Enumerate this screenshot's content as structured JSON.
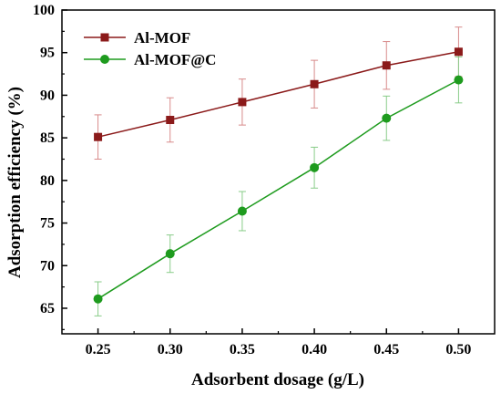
{
  "chart_data": {
    "type": "line",
    "xlabel": "Adsorbent dosage (g/L)",
    "ylabel": "Adsorption efficiency (%)",
    "x": [
      0.25,
      0.3,
      0.35,
      0.4,
      0.45,
      0.5
    ],
    "x_tick_labels": [
      "0.25",
      "0.30",
      "0.35",
      "0.40",
      "0.45",
      "0.50"
    ],
    "xlim": [
      0.225,
      0.525
    ],
    "ylim": [
      62,
      100
    ],
    "y_ticks": [
      65,
      70,
      75,
      80,
      85,
      90,
      95,
      100
    ],
    "y_tick_labels": [
      "65",
      "70",
      "75",
      "80",
      "85",
      "90",
      "95",
      "100"
    ],
    "grid": false,
    "legend_position": "top-left",
    "series": [
      {
        "name": "Al-MOF",
        "color": "#8B1A1A",
        "marker": "square",
        "values": [
          85.1,
          87.1,
          89.2,
          91.3,
          93.5,
          95.1
        ],
        "error": [
          2.6,
          2.6,
          2.7,
          2.8,
          2.8,
          2.9
        ]
      },
      {
        "name": "Al-MOF@C",
        "color": "#1E9B1E",
        "marker": "circle",
        "values": [
          66.1,
          71.4,
          76.4,
          81.5,
          87.3,
          91.8
        ],
        "error": [
          2.0,
          2.2,
          2.3,
          2.4,
          2.6,
          2.7
        ]
      }
    ]
  }
}
